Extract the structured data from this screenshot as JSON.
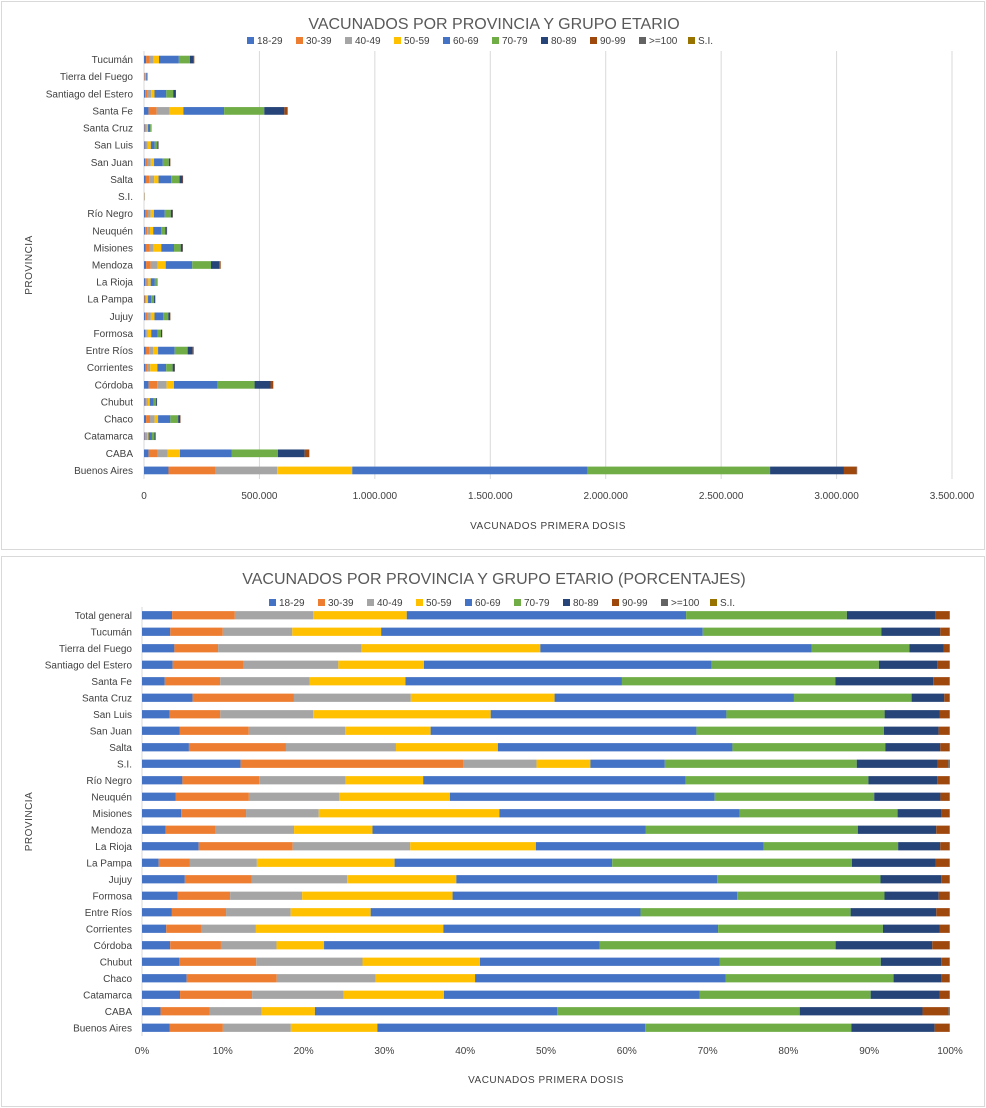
{
  "colors": {
    "18-29": "#4472c4",
    "30-39": "#ed7d31",
    "40-49": "#a5a5a5",
    "50-59": "#ffc000",
    "60-69": "#4472c4",
    "70-79": "#70ad47",
    "80-89": "#264478",
    "90-99": "#9e480e",
    ">=100": "#636363",
    "S.I.": "#997300"
  },
  "series_names": [
    "18-29",
    "30-39",
    "40-49",
    "50-59",
    "60-69",
    "70-79",
    "80-89",
    "90-99",
    ">=100",
    "S.I."
  ],
  "chart_data": [
    {
      "type": "bar",
      "orientation": "horizontal",
      "stacked": true,
      "title": "VACUNADOS POR PROVINCIA Y GRUPO ETARIO",
      "xlabel": "VACUNADOS  PRIMERA  DOSIS",
      "ylabel": "PROVINCIA",
      "xlim": [
        0,
        3500000
      ],
      "xticks": [
        0,
        500000,
        1000000,
        1500000,
        2000000,
        2500000,
        3000000,
        3500000
      ],
      "xtick_labels": [
        "0",
        "500.000",
        "1.000.000",
        "1.500.000",
        "2.000.000",
        "2.500.000",
        "3.000.000",
        "3.500.000"
      ],
      "legend_position": "top",
      "categories": [
        "Tucumán",
        "Tierra del Fuego",
        "Santiago del Estero",
        "Santa Fe",
        "Santa Cruz",
        "San Luis",
        "San Juan",
        "Salta",
        "S.I.",
        "Río Negro",
        "Neuquén",
        "Misiones",
        "Mendoza",
        "La Rioja",
        "La Pampa",
        "Jujuy",
        "Formosa",
        "Entre Ríos",
        "Corrientes",
        "Córdoba",
        "Chubut",
        "Chaco",
        "Catamarca",
        "CABA",
        "Buenos Aires"
      ],
      "series": [
        {
          "name": "18-29",
          "values": [
            9000,
            1500,
            5500,
            20000,
            3000,
            3500,
            5500,
            8000,
            600,
            6000,
            5000,
            8000,
            9000,
            5000,
            2000,
            5500,
            4500,
            8000,
            6000,
            20000,
            3500,
            9000,
            3000,
            20000,
            106000
          ]
        },
        {
          "name": "30-39",
          "values": [
            15000,
            2300,
            11000,
            35000,
            4000,
            5000,
            10000,
            15000,
            1100,
            11000,
            9000,
            16000,
            20000,
            6000,
            3000,
            10000,
            5000,
            14000,
            10000,
            37000,
            6500,
            17000,
            4500,
            40000,
            205000
          ]
        },
        {
          "name": "40-49",
          "values": [
            18000,
            2600,
            15000,
            56000,
            5000,
            8000,
            14000,
            21000,
            350,
            12000,
            12000,
            18000,
            30000,
            8000,
            4500,
            14000,
            7000,
            17000,
            11000,
            41000,
            7000,
            20000,
            5500,
            43000,
            266000
          ]
        },
        {
          "name": "50-59",
          "values": [
            23000,
            3000,
            14000,
            60000,
            5500,
            13000,
            14000,
            19000,
            250,
            14000,
            14000,
            33000,
            35000,
            10000,
            8000,
            16000,
            15000,
            22000,
            31000,
            32000,
            8000,
            15000,
            6500,
            53000,
            325000
          ]
        },
        {
          "name": "60-69",
          "values": [
            86000,
            4800,
            51000,
            176000,
            9000,
            17000,
            38000,
            55000,
            350,
            47000,
            35000,
            55000,
            115000,
            18000,
            14000,
            37000,
            28000,
            72000,
            38000,
            188000,
            16000,
            53000,
            15000,
            223000,
            1020000
          ]
        },
        {
          "name": "70-79",
          "values": [
            48000,
            1300,
            30000,
            174000,
            4500,
            12000,
            26000,
            36000,
            350,
            26000,
            17000,
            29000,
            81000,
            9000,
            12000,
            23000,
            14000,
            56000,
            28000,
            161000,
            11000,
            34000,
            11000,
            201000,
            790000
          ]
        },
        {
          "name": "80-89",
          "values": [
            16000,
            450,
            10000,
            87000,
            1300,
            4000,
            6000,
            13000,
            150,
            8000,
            7000,
            8000,
            36000,
            2000,
            5000,
            8000,
            5000,
            22000,
            9000,
            69000,
            4000,
            9000,
            4300,
            116000,
            320000
          ]
        },
        {
          "name": "90-99",
          "values": [
            3000,
            80,
            2000,
            14000,
            200,
            700,
            1200,
            2300,
            40,
            1400,
            1000,
            1500,
            6000,
            400,
            800,
            1300,
            700,
            4000,
            1200,
            12000,
            600,
            1500,
            700,
            20000,
            55000
          ]
        },
        {
          "name": ">=100",
          "values": [
            80,
            5,
            60,
            300,
            5,
            20,
            30,
            60,
            5,
            40,
            30,
            40,
            150,
            10,
            20,
            30,
            20,
            100,
            30,
            250,
            15,
            40,
            15,
            500,
            1500
          ]
        },
        {
          "name": "S.I.",
          "values": [
            50,
            5,
            40,
            200,
            5,
            15,
            20,
            40,
            5,
            30,
            20,
            30,
            100,
            10,
            15,
            20,
            15,
            60,
            20,
            150,
            10,
            30,
            10,
            300,
            1000
          ]
        }
      ]
    },
    {
      "type": "bar",
      "orientation": "horizontal",
      "stacked": true,
      "normalized": true,
      "title": "VACUNADOS POR PROVINCIA Y GRUPO ETARIO (PORCENTAJES)",
      "xlabel": "VACUNADOS  PRIMERA  DOSIS",
      "ylabel": "PROVINCIA",
      "xlim": [
        0,
        100
      ],
      "xticks": [
        0,
        10,
        20,
        30,
        40,
        50,
        60,
        70,
        80,
        90,
        100
      ],
      "xtick_labels": [
        "0%",
        "10%",
        "20%",
        "30%",
        "40%",
        "50%",
        "60%",
        "70%",
        "80%",
        "90%",
        "100%"
      ],
      "legend_position": "top",
      "categories": [
        "Total general",
        "Tucumán",
        "Tierra del Fuego",
        "Santiago del Estero",
        "Santa Fe",
        "Santa Cruz",
        "San Luis",
        "San Juan",
        "Salta",
        "S.I.",
        "Río Negro",
        "Neuquén",
        "Misiones",
        "Mendoza",
        "La Rioja",
        "La Pampa",
        "Jujuy",
        "Formosa",
        "Entre Ríos",
        "Corrientes",
        "Córdoba",
        "Chubut",
        "Chaco",
        "Catamarca",
        "CABA",
        "Buenos Aires"
      ],
      "series": [
        {
          "name": "18-29",
          "values": [
            3.5,
            3.5,
            4.0,
            3.8,
            3.0,
            6.2,
            3.4,
            4.6,
            5.8,
            11.0,
            5.0,
            4.2,
            5.0,
            2.9,
            7.0,
            2.2,
            5.3,
            4.4,
            3.7,
            3.0,
            3.5,
            4.6,
            5.7,
            4.7,
            2.3,
            3.4
          ]
        },
        {
          "name": "30-39",
          "values": [
            7.3,
            6.5,
            5.4,
            8.7,
            7.3,
            12.4,
            6.3,
            8.5,
            12.0,
            24.8,
            9.5,
            9.2,
            8.3,
            6.2,
            11.6,
            4.1,
            8.3,
            6.5,
            6.7,
            4.3,
            6.3,
            9.6,
            11.5,
            8.9,
            6.1,
            6.6
          ]
        },
        {
          "name": "40-49",
          "values": [
            9.1,
            8.6,
            17.7,
            11.8,
            11.8,
            14.3,
            11.5,
            11.8,
            13.6,
            8.2,
            10.7,
            11.3,
            9.3,
            9.7,
            14.5,
            8.8,
            11.8,
            8.9,
            8.0,
            6.8,
            6.9,
            13.2,
            12.6,
            11.3,
            6.4,
            8.4
          ]
        },
        {
          "name": "50-59",
          "values": [
            10.9,
            11.0,
            22.1,
            10.6,
            12.6,
            17.6,
            22.0,
            10.5,
            12.6,
            6.0,
            9.6,
            13.9,
            23.1,
            9.7,
            15.5,
            18.1,
            13.5,
            18.6,
            9.9,
            23.2,
            5.9,
            14.6,
            12.7,
            12.4,
            6.6,
            10.7
          ]
        },
        {
          "name": "60-69",
          "values": [
            32.5,
            39.8,
            33.5,
            35.6,
            28.5,
            29.3,
            29.2,
            32.6,
            29.0,
            8.3,
            32.5,
            33.2,
            30.7,
            33.8,
            28.1,
            28.6,
            32.3,
            35.2,
            33.4,
            34.0,
            34.2,
            29.8,
            32.0,
            31.6,
            30.0,
            33.1
          ]
        },
        {
          "name": "70-79",
          "values": [
            18.7,
            22.1,
            12.1,
            20.7,
            28.1,
            14.4,
            19.6,
            23.0,
            18.9,
            21.4,
            22.6,
            20.0,
            20.2,
            26.2,
            16.6,
            31.5,
            20.2,
            18.2,
            26.0,
            20.4,
            29.3,
            20.0,
            21.4,
            21.1,
            30.0,
            25.5
          ]
        },
        {
          "name": "80-89",
          "values": [
            10.3,
            7.3,
            4.2,
            7.2,
            12.9,
            4.0,
            6.8,
            6.7,
            6.8,
            9.0,
            8.5,
            8.3,
            5.6,
            9.7,
            5.2,
            11.0,
            7.5,
            6.7,
            10.6,
            7.0,
            12.0,
            7.5,
            6.1,
            8.5,
            15.2,
            10.3
          ]
        },
        {
          "name": "90-99",
          "values": [
            1.6,
            1.1,
            0.7,
            1.5,
            2.1,
            0.6,
            1.2,
            1.3,
            1.1,
            1.2,
            1.5,
            1.1,
            1.0,
            1.6,
            1.1,
            1.8,
            1.0,
            1.3,
            1.6,
            1.2,
            2.1,
            1.0,
            1.0,
            1.2,
            3.2,
            1.8
          ]
        },
        {
          "name": ">=100",
          "values": [
            0.05,
            0.05,
            0.05,
            0.05,
            0.05,
            0.05,
            0.05,
            0.05,
            0.05,
            0.1,
            0.05,
            0.05,
            0.05,
            0.05,
            0.05,
            0.05,
            0.05,
            0.05,
            0.05,
            0.05,
            0.05,
            0.05,
            0.05,
            0.05,
            0.1,
            0.05
          ]
        },
        {
          "name": "S.I.",
          "values": [
            0.05,
            0.05,
            0.05,
            0.05,
            0.05,
            0.05,
            0.05,
            0.05,
            0.05,
            0.1,
            0.05,
            0.05,
            0.05,
            0.05,
            0.05,
            0.05,
            0.05,
            0.05,
            0.05,
            0.05,
            0.05,
            0.05,
            0.05,
            0.05,
            0.1,
            0.05
          ]
        }
      ]
    }
  ]
}
